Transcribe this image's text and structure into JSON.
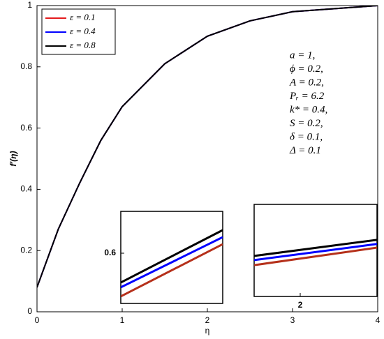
{
  "chart_data": [
    {
      "type": "line",
      "xlabel": "η",
      "ylabel": "f′(η)",
      "x": [
        0,
        0.25,
        0.5,
        0.75,
        1,
        1.5,
        2,
        2.5,
        3,
        3.5,
        4
      ],
      "series": [
        {
          "name": "ε = 0.1",
          "color": "#e41a1c",
          "values": [
            0.08,
            0.27,
            0.42,
            0.56,
            0.67,
            0.81,
            0.9,
            0.95,
            0.98,
            0.99,
            1.0
          ]
        },
        {
          "name": "ε = 0.4",
          "color": "#0000ff",
          "values": [
            0.08,
            0.27,
            0.42,
            0.56,
            0.67,
            0.81,
            0.9,
            0.95,
            0.98,
            0.99,
            1.0
          ]
        },
        {
          "name": "ε = 0.8",
          "color": "#000000",
          "values": [
            0.08,
            0.27,
            0.42,
            0.56,
            0.67,
            0.81,
            0.9,
            0.95,
            0.98,
            0.99,
            1.0
          ]
        }
      ],
      "xlim": [
        0,
        4
      ],
      "ylim": [
        0,
        1
      ],
      "xticks": [
        0,
        1,
        2,
        3,
        4
      ],
      "yticks": [
        0,
        0.2,
        0.4,
        0.6,
        0.8,
        1
      ],
      "legend": "upper left",
      "annotations": [
        "a = 1,",
        "ϕ = 0.2,",
        "A = 0.2,",
        "Pᵣ = 6.2",
        "k* = 0.4,",
        "S = 0.2,",
        "δ = 0.1,",
        "Δ = 0.1"
      ]
    },
    {
      "type": "line",
      "x": [
        0.77,
        0.83
      ],
      "series": [
        {
          "color": "#b5301a",
          "values": [
            0.5742,
            0.6054
          ]
        },
        {
          "color": "#0000ff",
          "values": [
            0.5796,
            0.6096
          ]
        },
        {
          "color": "#000000",
          "values": [
            0.5825,
            0.6138
          ]
        }
      ],
      "xlim": [
        0.77,
        0.83
      ],
      "ylim": [
        0.57,
        0.625
      ],
      "yticks": [
        0.6
      ]
    },
    {
      "type": "line",
      "x": [
        1.97,
        2.05
      ],
      "series": [
        {
          "color": "#b5301a",
          "values": [
            0.8918,
            0.8956
          ]
        },
        {
          "color": "#0000ff",
          "values": [
            0.8929,
            0.8964
          ]
        },
        {
          "color": "#000000",
          "values": [
            0.8938,
            0.8973
          ]
        }
      ],
      "xlim": [
        1.97,
        2.05
      ],
      "ylim": [
        0.885,
        0.905
      ],
      "xticks": [
        2
      ]
    }
  ]
}
